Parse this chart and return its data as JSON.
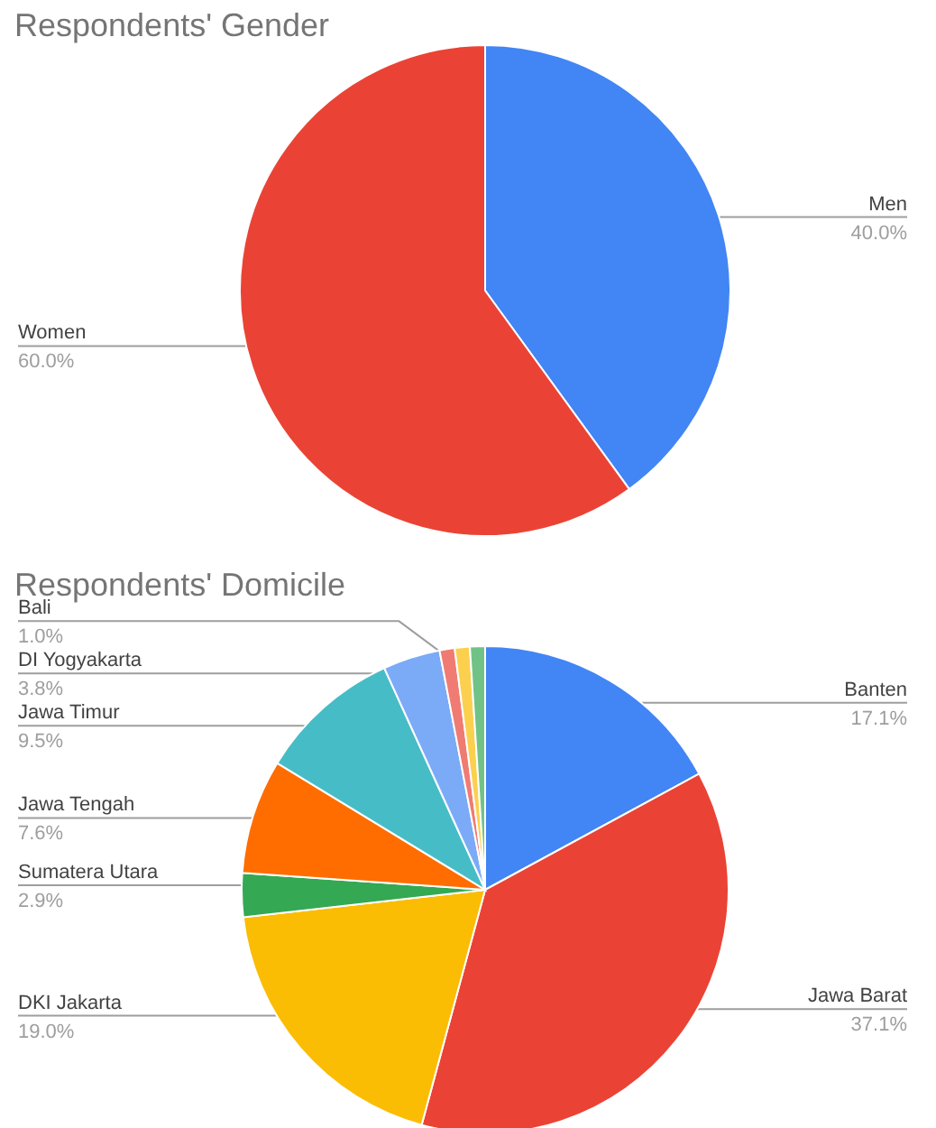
{
  "chart_data": [
    {
      "type": "pie",
      "title": "Respondents' Gender",
      "categories": [
        "Men",
        "Women"
      ],
      "values": [
        40,
        60
      ],
      "colors": [
        "#4285f4",
        "#ea4335"
      ],
      "value_labels": [
        "40.0%",
        "60.0%"
      ]
    },
    {
      "type": "pie",
      "title": "Respondents' Domicile",
      "categories": [
        "Banten",
        "Jawa Barat",
        "DKI Jakarta",
        "Sumatera Utara",
        "Jawa Tengah",
        "Jawa Timur",
        "DI Yogyakarta",
        null,
        null,
        "Bali"
      ],
      "values": [
        17.1,
        37.1,
        19.0,
        2.9,
        7.6,
        9.5,
        3.8,
        1.0,
        1.0,
        1.0
      ],
      "colors": [
        "#4285f4",
        "#ea4335",
        "#fbbc04",
        "#34a853",
        "#ff6d01",
        "#46bdc6",
        "#7baaf7",
        "#f07b72",
        "#fcd04f",
        "#71c287"
      ],
      "value_labels": [
        "17.1%",
        "37.1%",
        "19.0%",
        "2.9%",
        "7.6%",
        "9.5%",
        "3.8%",
        null,
        null,
        "1.0%"
      ]
    }
  ]
}
